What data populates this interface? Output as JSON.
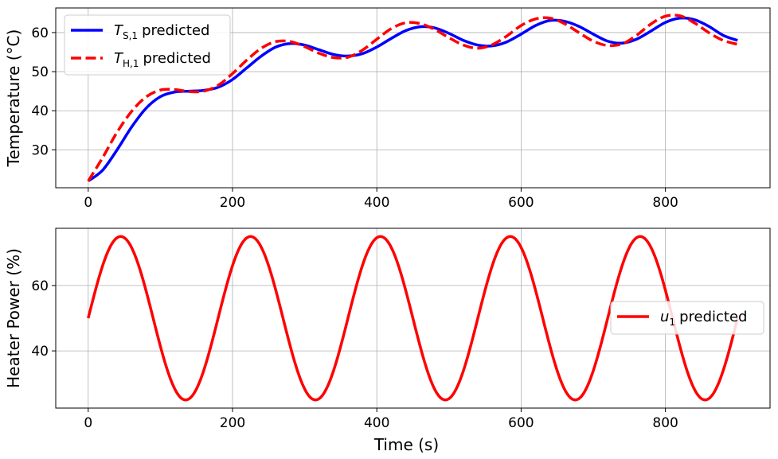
{
  "chart_data": [
    {
      "type": "line",
      "title": "",
      "xlabel": "",
      "ylabel": "Temperature (°C)",
      "xlim": [
        -45,
        945
      ],
      "ylim": [
        20.3,
        66.3
      ],
      "xticks": [
        0,
        200,
        400,
        600,
        800
      ],
      "xtick_labels": [
        "0",
        "200",
        "400",
        "600",
        "800"
      ],
      "yticks": [
        30,
        40,
        50,
        60
      ],
      "ytick_labels": [
        "30",
        "40",
        "50",
        "60"
      ],
      "grid": true,
      "legend_position": "top-left",
      "series": [
        {
          "name": "predicted",
          "legend_symbol": "T",
          "legend_subscript": "S,1",
          "color": "#0000ff",
          "style": "solid",
          "x": [
            0,
            20,
            40,
            60,
            80,
            100,
            120,
            140,
            160,
            180,
            200,
            220,
            240,
            260,
            280,
            300,
            320,
            340,
            360,
            380,
            400,
            420,
            440,
            460,
            480,
            500,
            520,
            540,
            560,
            580,
            600,
            620,
            640,
            660,
            680,
            700,
            720,
            740,
            760,
            780,
            800,
            820,
            840,
            860,
            880,
            900
          ],
          "y": [
            22.0,
            24.8,
            30.0,
            35.8,
            40.6,
            43.6,
            44.8,
            45.0,
            45.2,
            46.0,
            48.0,
            51.0,
            54.0,
            56.3,
            57.2,
            56.8,
            55.6,
            54.4,
            54.0,
            54.6,
            56.3,
            58.5,
            60.5,
            61.5,
            61.2,
            59.8,
            58.0,
            56.8,
            56.6,
            57.6,
            59.6,
            61.8,
            63.1,
            62.9,
            61.6,
            59.6,
            57.8,
            57.3,
            58.3,
            60.4,
            62.6,
            63.7,
            63.3,
            61.6,
            59.3,
            58.0
          ]
        },
        {
          "name": "predicted",
          "legend_symbol": "T",
          "legend_subscript": "H,1",
          "color": "#ff0000",
          "style": "dashed",
          "x": [
            0,
            20,
            40,
            60,
            80,
            100,
            120,
            140,
            160,
            180,
            200,
            220,
            240,
            260,
            280,
            300,
            320,
            340,
            360,
            380,
            400,
            420,
            440,
            460,
            480,
            500,
            520,
            540,
            560,
            580,
            600,
            620,
            640,
            660,
            680,
            700,
            720,
            740,
            760,
            780,
            800,
            820,
            840,
            860,
            880,
            900
          ],
          "y": [
            22.0,
            28.0,
            34.5,
            39.8,
            43.5,
            45.3,
            45.4,
            44.9,
            45.0,
            46.5,
            49.5,
            53.0,
            56.0,
            57.7,
            57.7,
            56.4,
            54.7,
            53.6,
            53.7,
            55.5,
            58.3,
            61.0,
            62.5,
            62.3,
            60.8,
            58.7,
            56.8,
            56.0,
            56.9,
            59.1,
            61.8,
            63.5,
            63.7,
            62.3,
            60.0,
            57.8,
            56.7,
            57.1,
            59.3,
            62.2,
            64.2,
            64.3,
            62.5,
            60.0,
            58.0,
            57.0
          ]
        }
      ]
    },
    {
      "type": "line",
      "title": "",
      "xlabel": "Time (s)",
      "ylabel": "Heater Power (%)",
      "xlim": [
        -45,
        945
      ],
      "ylim": [
        22.5,
        77.5
      ],
      "xticks": [
        0,
        200,
        400,
        600,
        800
      ],
      "xtick_labels": [
        "0",
        "200",
        "400",
        "600",
        "800"
      ],
      "yticks": [
        40,
        60
      ],
      "ytick_labels": [
        "40",
        "60"
      ],
      "grid": true,
      "legend_position": "center-right",
      "series": [
        {
          "name": "predicted",
          "legend_symbol": "u",
          "legend_subscript": "1",
          "color": "#ff0000",
          "style": "solid",
          "function": "50 + 25*sin(2*pi*t/180)",
          "x_range": [
            0,
            900
          ]
        }
      ]
    }
  ]
}
